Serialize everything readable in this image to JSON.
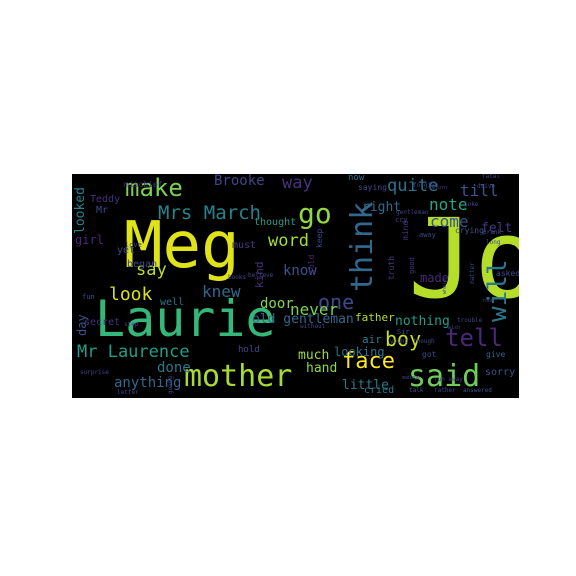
{
  "words": [
    {
      "text": "Jo",
      "color": "#b5de2b"
    },
    {
      "text": "Meg",
      "color": "#dfe318"
    },
    {
      "text": "Laurie",
      "color": "#35b779"
    },
    {
      "text": "mother",
      "color": "#a5db36"
    },
    {
      "text": "said",
      "color": "#6ece58"
    },
    {
      "text": "think",
      "color": "#31688e"
    },
    {
      "text": "will",
      "color": "#2a788e"
    },
    {
      "text": "make",
      "color": "#7ad151"
    },
    {
      "text": "go",
      "color": "#90d743"
    },
    {
      "text": "Mrs March",
      "color": "#26828e"
    },
    {
      "text": "tell",
      "color": "#482878"
    },
    {
      "text": "face",
      "color": "#fde725"
    },
    {
      "text": "Mr Laurence",
      "color": "#1f9e89"
    },
    {
      "text": "boy",
      "color": "#c8e020"
    },
    {
      "text": "one",
      "color": "#3e4989"
    },
    {
      "text": "look",
      "color": "#d8e219"
    },
    {
      "text": "word",
      "color": "#a5db36"
    },
    {
      "text": "say",
      "color": "#bddf26"
    },
    {
      "text": "quite",
      "color": "#2c728e"
    },
    {
      "text": "note",
      "color": "#22a884"
    },
    {
      "text": "come",
      "color": "#3b528b"
    },
    {
      "text": "knew",
      "color": "#31688e"
    },
    {
      "text": "way",
      "color": "#46327e"
    },
    {
      "text": "Brooke",
      "color": "#404688"
    },
    {
      "text": "know",
      "color": "#3b528b"
    },
    {
      "text": "never",
      "color": "#7ad151"
    },
    {
      "text": "done",
      "color": "#2a788e"
    },
    {
      "text": "anything",
      "color": "#31688e"
    },
    {
      "text": "till",
      "color": "#3b528b"
    },
    {
      "text": "nothing",
      "color": "#1f9e89"
    },
    {
      "text": "door",
      "color": "#86d549"
    },
    {
      "text": "father",
      "color": "#b5de2b"
    },
    {
      "text": "right",
      "color": "#31688e"
    },
    {
      "text": "old gentleman",
      "color": "#31688e"
    },
    {
      "text": "looked",
      "color": "#26828e"
    },
    {
      "text": "girl",
      "color": "#482878"
    },
    {
      "text": "hand",
      "color": "#90d743"
    },
    {
      "text": "much",
      "color": "#9fda3a"
    },
    {
      "text": "little",
      "color": "#2a788e"
    },
    {
      "text": "Teddy",
      "color": "#46327e"
    },
    {
      "text": "Mr",
      "color": "#3e4989"
    },
    {
      "text": "felt",
      "color": "#443983"
    },
    {
      "text": "made",
      "color": "#482878"
    },
    {
      "text": "looking",
      "color": "#2c728e"
    },
    {
      "text": "day",
      "color": "#3b528b"
    },
    {
      "text": "kind",
      "color": "#46327e"
    },
    {
      "text": "air",
      "color": "#287c8e"
    },
    {
      "text": "cried",
      "color": "#2a788e"
    },
    {
      "text": "sorry",
      "color": "#3b528b"
    },
    {
      "text": "thought",
      "color": "#1f9e89"
    },
    {
      "text": "must",
      "color": "#443983"
    },
    {
      "text": "began",
      "color": "#3e4989"
    },
    {
      "text": "yet",
      "color": "#3e4989"
    },
    {
      "text": "secret",
      "color": "#46327e"
    },
    {
      "text": "well",
      "color": "#2a788e"
    },
    {
      "text": "hold",
      "color": "#404688"
    },
    {
      "text": "now",
      "color": "#2c728e"
    },
    {
      "text": "saying",
      "color": "#3e4989"
    },
    {
      "text": "mischief",
      "color": "#46327e"
    },
    {
      "text": "got",
      "color": "#404688"
    },
    {
      "text": "give",
      "color": "#31688e"
    },
    {
      "text": "asked",
      "color": "#3e4989"
    },
    {
      "text": "crying",
      "color": "#3b528b"
    },
    {
      "text": "keep",
      "color": "#3e4989"
    },
    {
      "text": "told",
      "color": "#482878"
    },
    {
      "text": "truth",
      "color": "#443983"
    },
    {
      "text": "mind",
      "color": "#46327e"
    },
    {
      "text": "away",
      "color": "#3e4989"
    },
    {
      "text": "good",
      "color": "#443983"
    },
    {
      "text": "gentleman",
      "color": "#414487"
    },
    {
      "text": "love",
      "color": "#3e4989"
    },
    {
      "text": "fun",
      "color": "#3b528b"
    },
    {
      "text": "letter",
      "color": "#414487"
    },
    {
      "text": "Sir",
      "color": "#3e4989"
    },
    {
      "text": "surprise",
      "color": "#414487"
    },
    {
      "text": "going",
      "color": "#414487"
    },
    {
      "text": "young",
      "color": "#3e4989"
    },
    {
      "text": "trouble",
      "color": "#414487"
    },
    {
      "text": "run away",
      "color": "#404688"
    },
    {
      "text": "talk",
      "color": "#3b528b"
    },
    {
      "text": "rather",
      "color": "#404688"
    },
    {
      "text": "answered",
      "color": "#3b528b"
    },
    {
      "text": "long",
      "color": "#3e4989"
    },
    {
      "text": "fatal",
      "color": "#404688"
    },
    {
      "text": "drive",
      "color": "#404688"
    },
    {
      "text": "forgive",
      "color": "#414487"
    },
    {
      "text": "return",
      "color": "#404688"
    },
    {
      "text": "joke",
      "color": "#414487"
    },
    {
      "text": "though",
      "color": "#3e4989"
    },
    {
      "text": "manage",
      "color": "#404688"
    },
    {
      "text": "without",
      "color": "#404688"
    },
    {
      "text": "believe",
      "color": "#414487"
    },
    {
      "text": "books",
      "color": "#3e4989"
    },
    {
      "text": "step",
      "color": "#404688"
    },
    {
      "text": "cry",
      "color": "#3e4989"
    },
    {
      "text": "wish",
      "color": "#414487"
    },
    {
      "text": "prank",
      "color": "#404688"
    },
    {
      "text": "matter",
      "color": "#3e4989"
    },
    {
      "text": "whole",
      "color": "#404688"
    },
    {
      "text": "room",
      "color": "#414487"
    }
  ]
}
